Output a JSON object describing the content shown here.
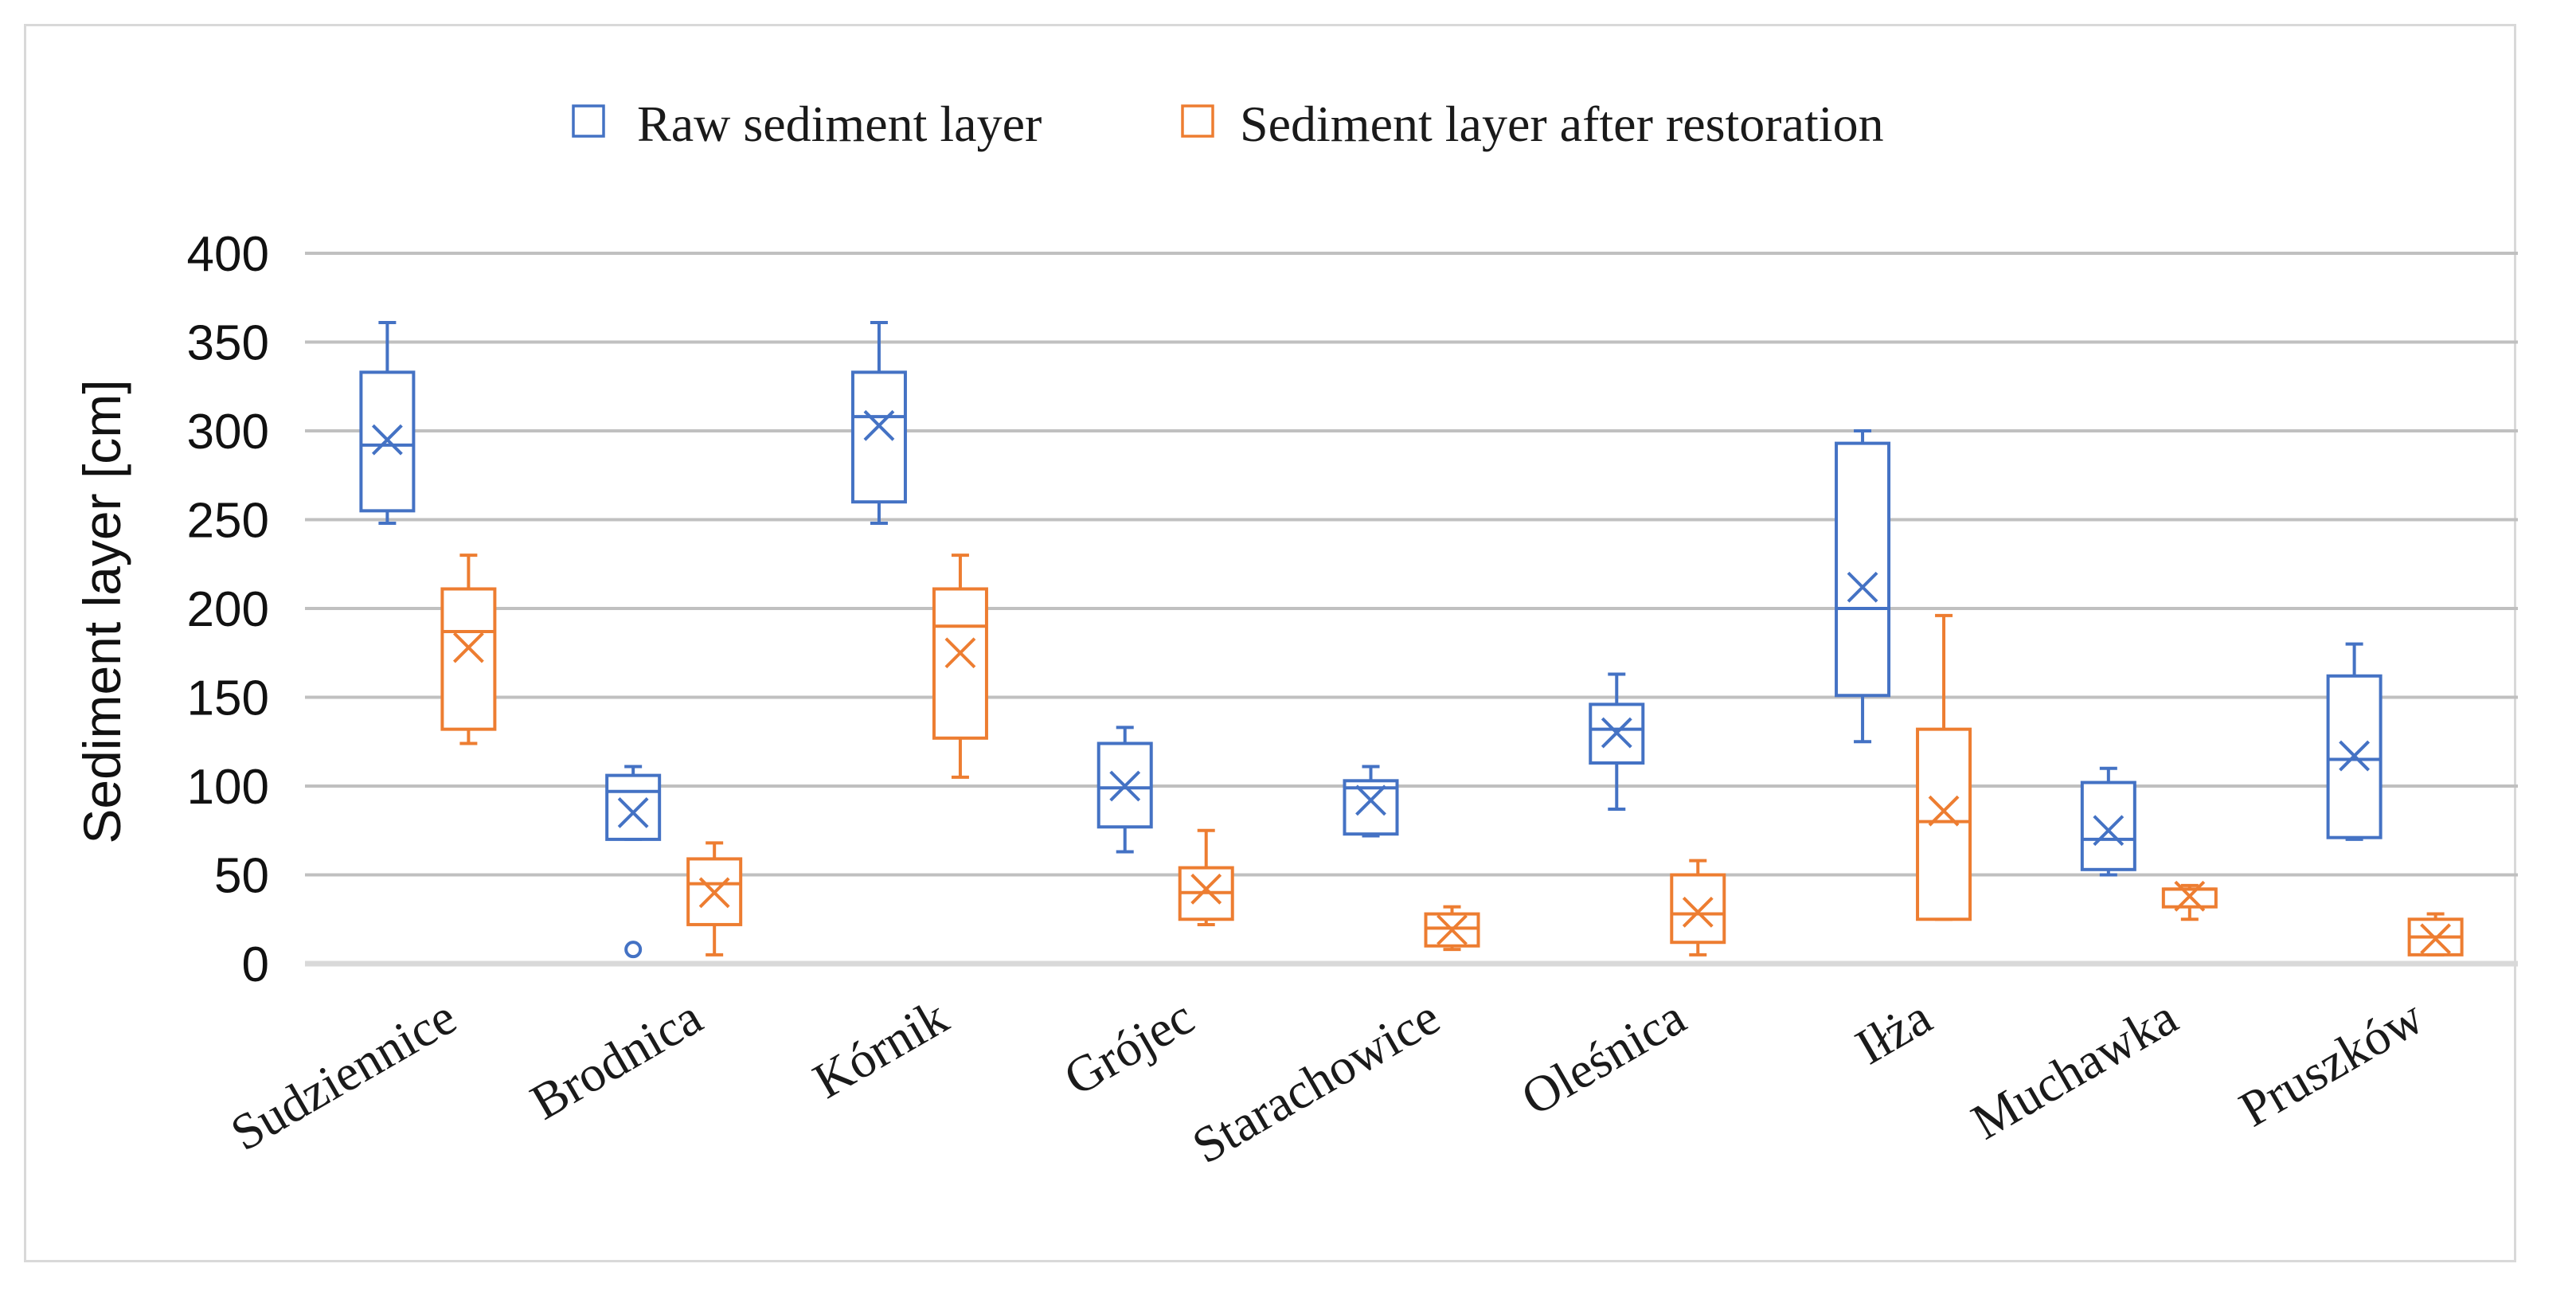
{
  "chart_data": {
    "type": "box",
    "title": "",
    "ylabel": "Sediment layer [cm]",
    "xlabel": "",
    "ylim": [
      0,
      400
    ],
    "yticks": [
      0,
      50,
      100,
      150,
      200,
      250,
      300,
      350,
      400
    ],
    "grid": true,
    "legend_position": "top-center",
    "categories": [
      "Sudziennice",
      "Brodnica",
      "Kórnik",
      "Grójec",
      "Starachowice",
      "Oleśnica",
      "Iłża",
      "Muchawka",
      "Pruszków"
    ],
    "series": [
      {
        "name": "Raw sediment layer",
        "color": "#4472c4",
        "boxes": [
          {
            "min": 248,
            "q1": 255,
            "median": 292,
            "q3": 333,
            "max": 361,
            "mean": 295,
            "outliers": []
          },
          {
            "min": 70,
            "q1": 70,
            "median": 97,
            "q3": 106,
            "max": 111,
            "mean": 85,
            "outliers": [
              8
            ]
          },
          {
            "min": 248,
            "q1": 260,
            "median": 308,
            "q3": 333,
            "max": 361,
            "mean": 303,
            "outliers": []
          },
          {
            "min": 63,
            "q1": 77,
            "median": 99,
            "q3": 124,
            "max": 133,
            "mean": 100,
            "outliers": []
          },
          {
            "min": 72,
            "q1": 73,
            "median": 99,
            "q3": 103,
            "max": 111,
            "mean": 92,
            "outliers": []
          },
          {
            "min": 87,
            "q1": 113,
            "median": 132,
            "q3": 146,
            "max": 163,
            "mean": 130,
            "outliers": []
          },
          {
            "min": 125,
            "q1": 151,
            "median": 200,
            "q3": 293,
            "max": 300,
            "mean": 212,
            "outliers": []
          },
          {
            "min": 50,
            "q1": 53,
            "median": 70,
            "q3": 102,
            "max": 110,
            "mean": 75,
            "outliers": []
          },
          {
            "min": 70,
            "q1": 71,
            "median": 115,
            "q3": 162,
            "max": 180,
            "mean": 117,
            "outliers": []
          }
        ]
      },
      {
        "name": "Sediment layer after restoration",
        "color": "#ed7d31",
        "boxes": [
          {
            "min": 124,
            "q1": 132,
            "median": 187,
            "q3": 211,
            "max": 230,
            "mean": 178,
            "outliers": []
          },
          {
            "min": 5,
            "q1": 22,
            "median": 45,
            "q3": 59,
            "max": 68,
            "mean": 40,
            "outliers": []
          },
          {
            "min": 105,
            "q1": 127,
            "median": 190,
            "q3": 211,
            "max": 230,
            "mean": 175,
            "outliers": []
          },
          {
            "min": 22,
            "q1": 25,
            "median": 40,
            "q3": 54,
            "max": 75,
            "mean": 42,
            "outliers": []
          },
          {
            "min": 8,
            "q1": 10,
            "median": 20,
            "q3": 28,
            "max": 32,
            "mean": 19,
            "outliers": []
          },
          {
            "min": 5,
            "q1": 12,
            "median": 28,
            "q3": 50,
            "max": 58,
            "mean": 29,
            "outliers": []
          },
          {
            "min": 25,
            "q1": 25,
            "median": 80,
            "q3": 132,
            "max": 196,
            "mean": 86,
            "outliers": []
          },
          {
            "min": 25,
            "q1": 32,
            "median": 42,
            "q3": 42,
            "max": 44,
            "mean": 38,
            "outliers": []
          },
          {
            "min": 5,
            "q1": 5,
            "median": 15,
            "q3": 25,
            "max": 28,
            "mean": 14,
            "outliers": []
          }
        ]
      }
    ]
  }
}
